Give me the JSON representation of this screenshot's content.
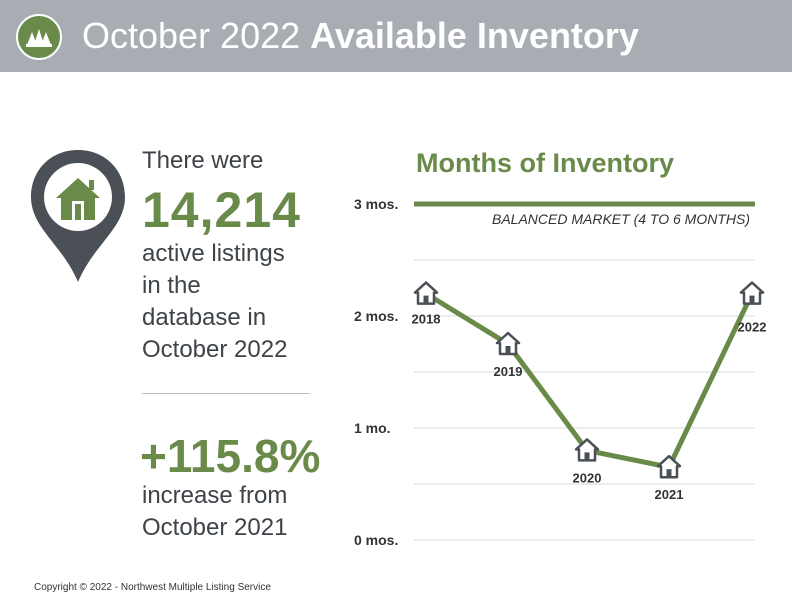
{
  "header": {
    "title_light": "October 2022",
    "title_bold": "Available Inventory",
    "logo_icon": "trees-logo-icon",
    "background_color": "#a8adb3"
  },
  "stats": {
    "intro": "There were",
    "listings_count": "14,214",
    "listings_desc_lines": [
      "active listings",
      "in the",
      "database in",
      "October 2022"
    ],
    "change_pct": "+115.8%",
    "change_desc_lines": [
      "increase from",
      "October 2021"
    ],
    "pin_icon": "house-map-pin-icon"
  },
  "chart_data": {
    "type": "line",
    "title": "Months of Inventory",
    "categories": [
      "2018",
      "2019",
      "2020",
      "2021",
      "2022"
    ],
    "values": [
      2.2,
      1.75,
      0.8,
      0.65,
      2.2
    ],
    "point_icon": "house-icon",
    "ylim": [
      0,
      3
    ],
    "y_ticks": [
      "0 mos.",
      "1 mo.",
      "2 mos.",
      "3 mos."
    ],
    "grid": true,
    "reference_line": {
      "value": 3,
      "label": "BALANCED MARKET (4 TO 6 MONTHS)"
    },
    "line_color": "#6a8a4a"
  },
  "footer": {
    "copyright": "Copyright © 2022 - Northwest Multiple Listing Service"
  }
}
